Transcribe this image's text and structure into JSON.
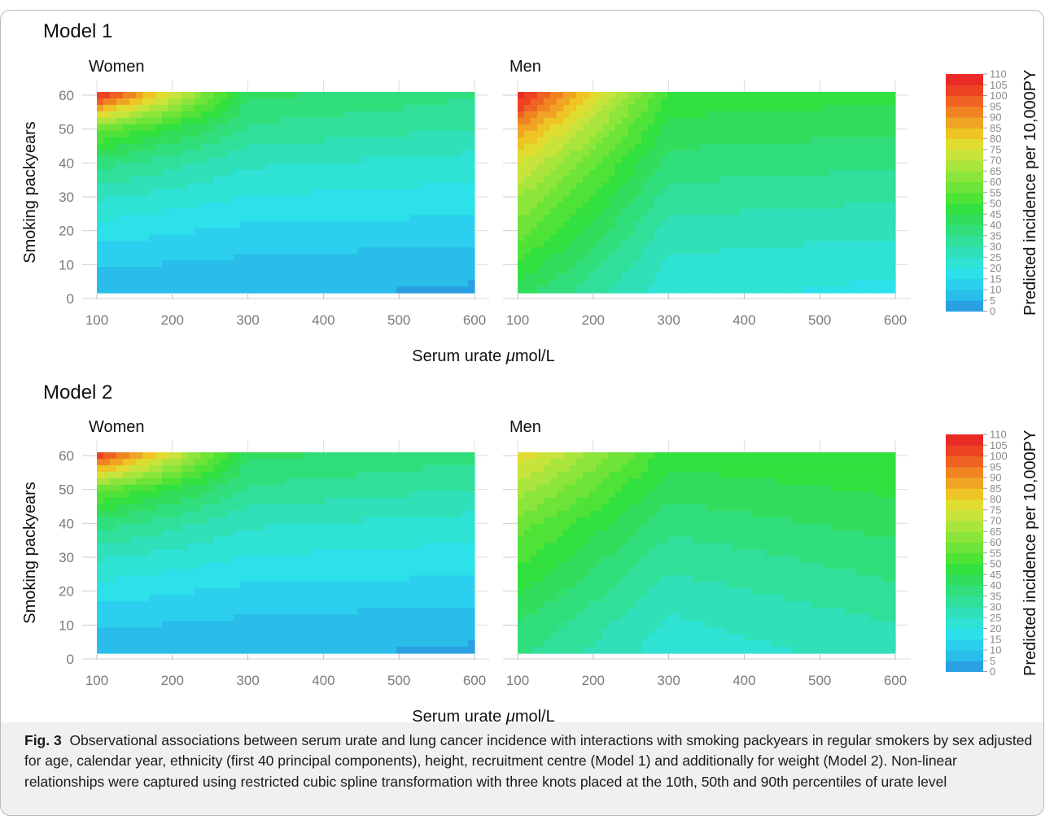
{
  "figure": {
    "caption_label": "Fig. 3",
    "caption_text": "Observational associations between serum urate and lung cancer incidence with interactions with smoking packyears in regular smokers by sex adjusted for age, calendar year, ethnicity (first 40 principal components), height, recruitment centre (Model 1) and additionally for weight (Model 2). Non-linear relationships were captured using restricted cubic spline transformation with three knots placed at the 10th, 50th and 90th percentiles of urate level"
  },
  "colors": {
    "scale": [
      "#2aa0e3",
      "#29bde9",
      "#2cd0ee",
      "#2de1ea",
      "#2ee2d4",
      "#2fe0b8",
      "#30df9a",
      "#31de7c",
      "#32dd5e",
      "#32e03f",
      "#4fe237",
      "#6ee338",
      "#8ce53a",
      "#aae53d",
      "#c8e43c",
      "#e0dc30",
      "#efc425",
      "#f0a423",
      "#f08423",
      "#ef6322",
      "#ee4224",
      "#e92a26"
    ]
  },
  "chart_data": [
    {
      "type": "heatmap",
      "model": "Model 1",
      "panel": "Women",
      "xlabel": "Serum urate μmol/L",
      "ylabel": "Smoking packyears",
      "xlim": [
        100,
        600
      ],
      "ylim": [
        1,
        61
      ],
      "x_ticks": [
        100,
        200,
        300,
        400,
        500,
        600
      ],
      "y_ticks": [
        0,
        10,
        20,
        30,
        40,
        50,
        60
      ],
      "z_grid": {
        "x": [
          100,
          300,
          600
        ],
        "y": [
          1,
          10,
          20,
          30,
          40,
          50,
          61
        ],
        "values": [
          [
            7,
            6,
            4
          ],
          [
            11,
            9,
            7
          ],
          [
            18,
            14,
            13
          ],
          [
            26,
            20,
            18
          ],
          [
            38,
            26,
            23
          ],
          [
            58,
            34,
            30
          ],
          [
            110,
            42,
            36
          ]
        ]
      }
    },
    {
      "type": "heatmap",
      "model": "Model 1",
      "panel": "Men",
      "xlabel": "Serum urate μmol/L",
      "ylabel": "",
      "xlim": [
        100,
        600
      ],
      "ylim": [
        1,
        61
      ],
      "x_ticks": [
        100,
        200,
        300,
        400,
        500,
        600
      ],
      "y_ticks": [
        0,
        10,
        20,
        30,
        40,
        50,
        60
      ],
      "z_grid": {
        "x": [
          100,
          300,
          600
        ],
        "y": [
          1,
          10,
          20,
          30,
          40,
          50,
          61
        ],
        "values": [
          [
            42,
            22,
            18
          ],
          [
            50,
            24,
            22
          ],
          [
            58,
            28,
            26
          ],
          [
            66,
            33,
            31
          ],
          [
            76,
            38,
            36
          ],
          [
            90,
            43,
            41
          ],
          [
            110,
            49,
            47
          ]
        ]
      }
    },
    {
      "type": "heatmap",
      "model": "Model 2",
      "panel": "Women",
      "xlabel": "Serum urate μmol/L",
      "ylabel": "Smoking packyears",
      "xlim": [
        100,
        600
      ],
      "ylim": [
        1,
        61
      ],
      "x_ticks": [
        100,
        200,
        300,
        400,
        500,
        600
      ],
      "y_ticks": [
        0,
        10,
        20,
        30,
        40,
        50,
        60
      ],
      "z_grid": {
        "x": [
          100,
          300,
          600
        ],
        "y": [
          1,
          10,
          20,
          30,
          40,
          50,
          61
        ],
        "values": [
          [
            7,
            6,
            4
          ],
          [
            11,
            9,
            7
          ],
          [
            18,
            14,
            13
          ],
          [
            26,
            20,
            18
          ],
          [
            38,
            26,
            23
          ],
          [
            58,
            34,
            30
          ],
          [
            108,
            42,
            37
          ]
        ]
      }
    },
    {
      "type": "heatmap",
      "model": "Model 2",
      "panel": "Men",
      "xlabel": "Serum urate μmol/L",
      "ylabel": "",
      "xlim": [
        100,
        600
      ],
      "ylim": [
        1,
        61
      ],
      "x_ticks": [
        100,
        200,
        300,
        400,
        500,
        600
      ],
      "y_ticks": [
        0,
        10,
        20,
        30,
        40,
        50,
        60
      ],
      "z_grid": {
        "x": [
          100,
          300,
          600
        ],
        "y": [
          1,
          10,
          20,
          30,
          40,
          50,
          61
        ],
        "values": [
          [
            36,
            22,
            27
          ],
          [
            40,
            24,
            30
          ],
          [
            46,
            28,
            34
          ],
          [
            52,
            32,
            38
          ],
          [
            58,
            37,
            42
          ],
          [
            68,
            42,
            46
          ],
          [
            80,
            48,
            50
          ]
        ]
      }
    }
  ],
  "models": [
    {
      "title": "Model 1",
      "panels": [
        "Women",
        "Men"
      ],
      "xlabel": "Serum urate μmol/L",
      "ylabel": "Smoking packyears"
    },
    {
      "title": "Model 2",
      "panels": [
        "Women",
        "Men"
      ],
      "xlabel": "Serum urate μmol/L",
      "ylabel": "Smoking packyears"
    }
  ],
  "legend": {
    "title": "Predicted incidence per 10,000PY",
    "breaks": [
      0,
      5,
      10,
      15,
      20,
      25,
      30,
      35,
      40,
      45,
      50,
      55,
      60,
      65,
      70,
      75,
      80,
      85,
      90,
      95,
      100,
      105,
      110
    ]
  }
}
